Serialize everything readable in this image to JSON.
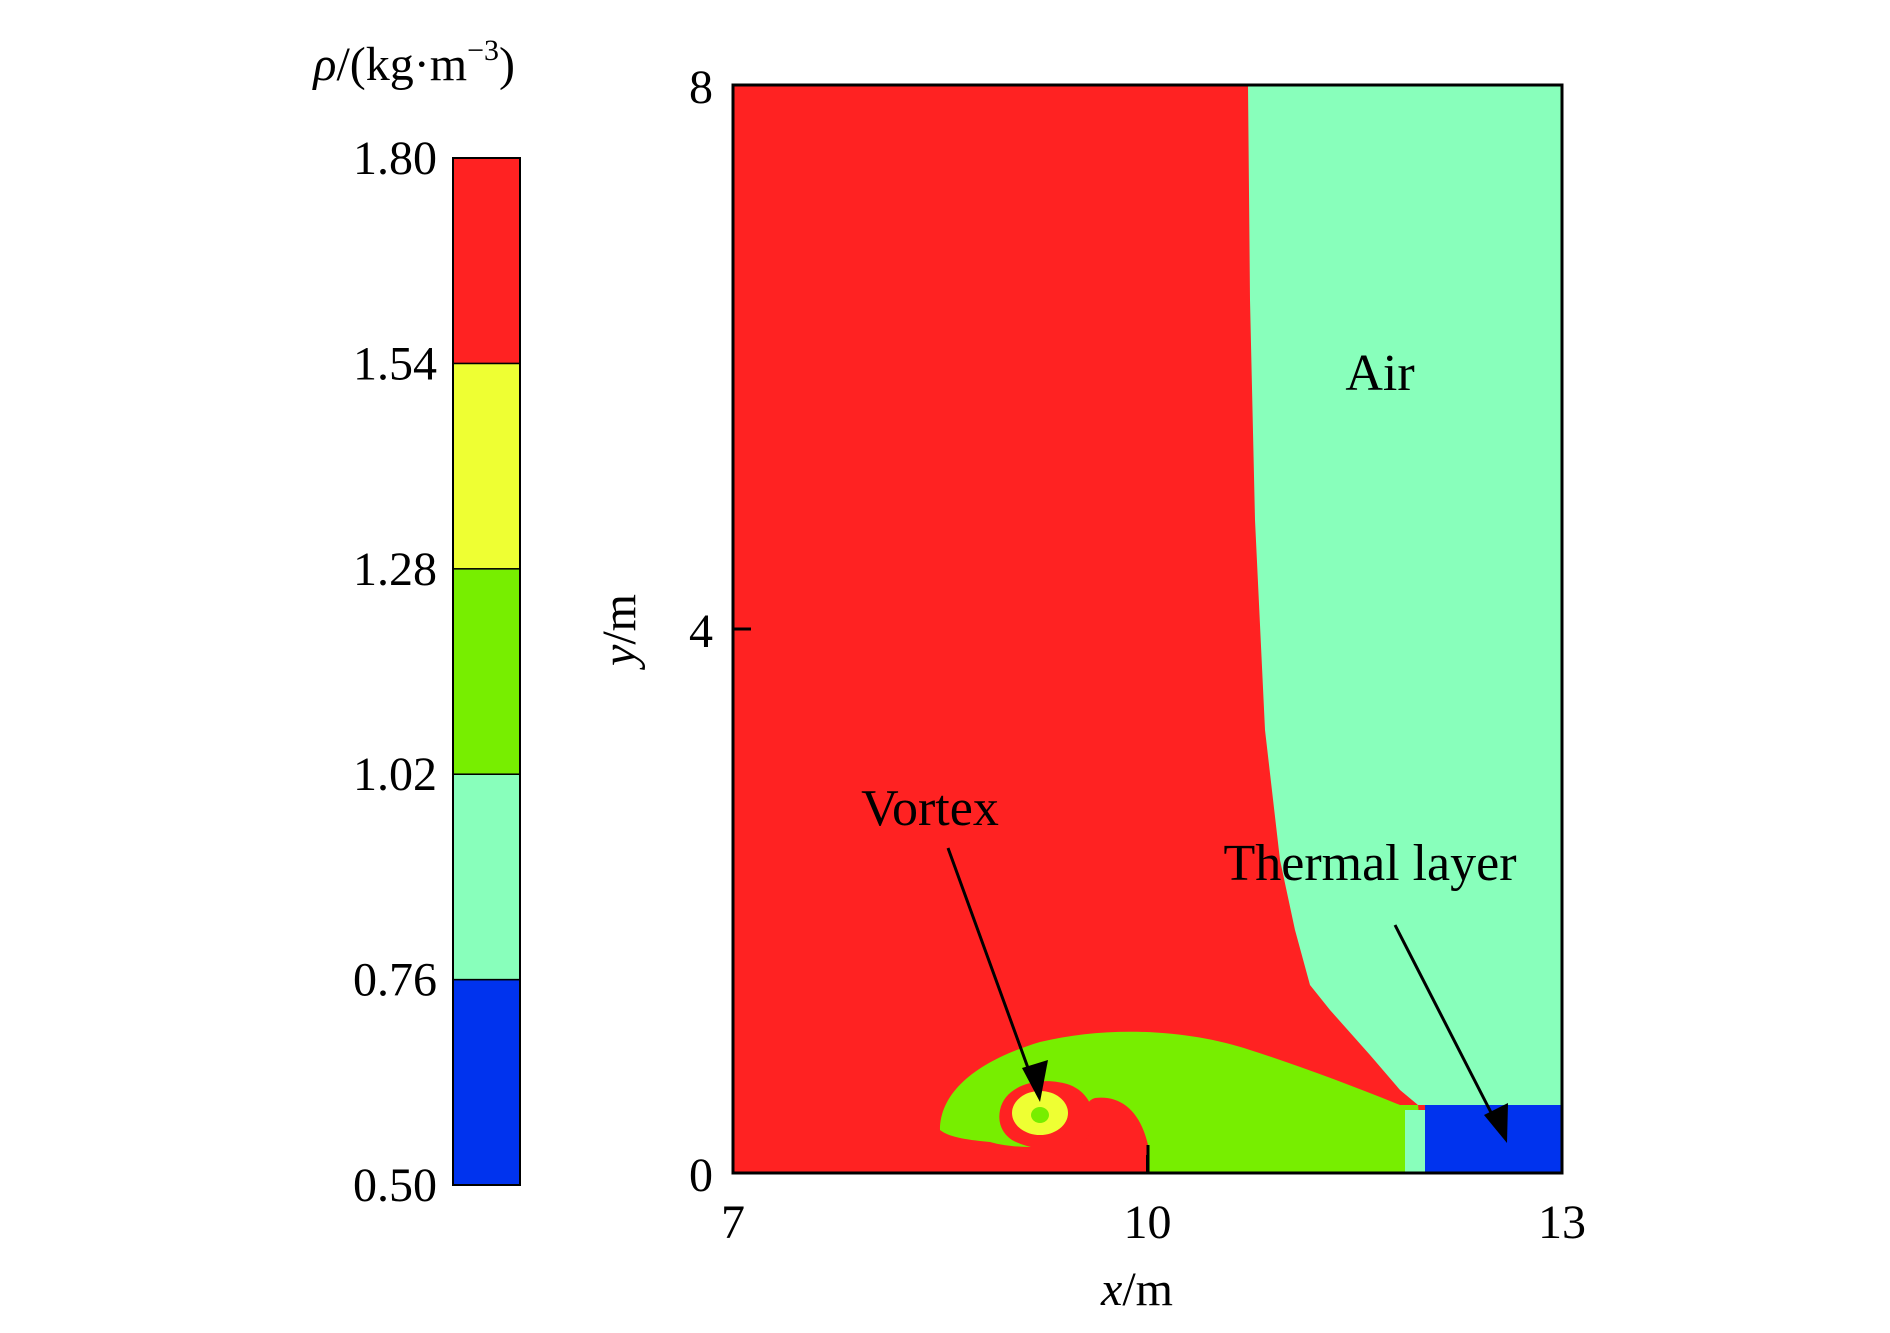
{
  "chart_data": {
    "type": "heatmap",
    "title": "",
    "xlabel": {
      "var": "x",
      "unit": "/m"
    },
    "ylabel": {
      "var": "y",
      "unit": "/m"
    },
    "xlim": [
      7,
      13
    ],
    "ylim": [
      0,
      8
    ],
    "xticks": [
      7,
      10,
      13
    ],
    "yticks": [
      0,
      4,
      8
    ],
    "colorbar": {
      "label": {
        "var": "ρ",
        "unit_prefix": "/(kg·m",
        "exponent": "−3",
        "close": ")"
      },
      "levels": [
        "0.50",
        "0.76",
        "1.02",
        "1.28",
        "1.54",
        "1.80"
      ],
      "colors": [
        "#0033ee",
        "#88ffbb",
        "#77ee00",
        "#eeff33",
        "#ff2222"
      ]
    },
    "colors": {
      "dense": "#ff2222",
      "air": "#88ffbb",
      "mixing": "#77ee00",
      "core": "#eeff33",
      "thermal": "#0033ee"
    },
    "annotations": [
      {
        "text": "Air"
      },
      {
        "text": "Vortex"
      },
      {
        "text": "Thermal layer"
      }
    ]
  }
}
